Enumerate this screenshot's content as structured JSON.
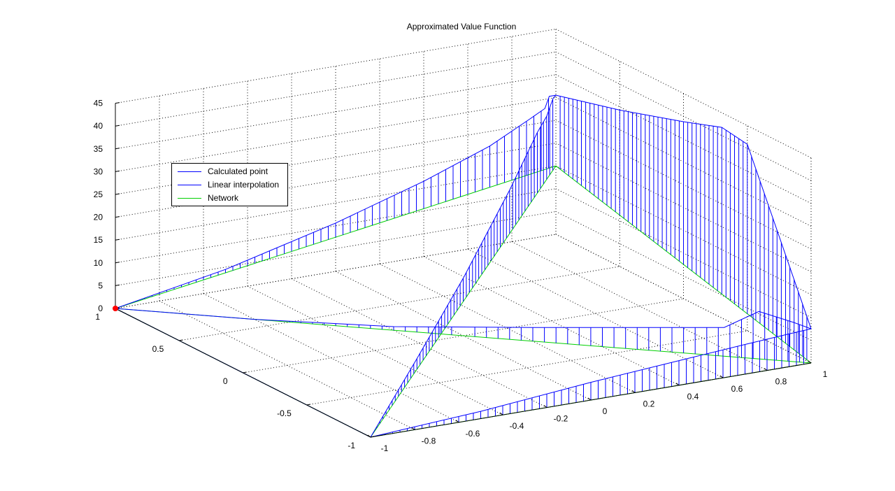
{
  "chart_data": {
    "type": "3d-line",
    "title": "Approximated Value Function",
    "xlabel": "",
    "ylabel": "",
    "zlabel": "",
    "xlim": [
      -1,
      1
    ],
    "ylim": [
      -1,
      1
    ],
    "zlim": [
      0,
      45
    ],
    "x_ticks": [
      "-1",
      "-0.8",
      "-0.6",
      "-0.4",
      "-0.2",
      "0",
      "0.2",
      "0.4",
      "0.6",
      "0.8",
      "1"
    ],
    "y_ticks": [
      "-1",
      "-0.5",
      "0",
      "0.5",
      "1"
    ],
    "z_ticks": [
      "0",
      "5",
      "10",
      "15",
      "20",
      "25",
      "30",
      "35",
      "40",
      "45"
    ],
    "grid": true,
    "legend_position": "upper-left",
    "legend": [
      {
        "label": "Calculated point",
        "color": "#0000ff"
      },
      {
        "label": "Linear interpolation",
        "color": "#0000ff"
      },
      {
        "label": "Network",
        "color": "#00d000"
      }
    ],
    "calculated_point": {
      "x": -1,
      "y": 1,
      "z": 0,
      "color": "#ff0000"
    },
    "colors": {
      "interpolation": "#0000ff",
      "network": "#00d000",
      "point": "#ff0000",
      "grid": "#000000"
    },
    "network_paths": [
      [
        [
          -1,
          1,
          0
        ],
        [
          1,
          1,
          15
        ]
      ],
      [
        [
          -1,
          1,
          0
        ],
        [
          1,
          -1,
          0
        ]
      ],
      [
        [
          1,
          1,
          15
        ],
        [
          1,
          -1,
          0
        ]
      ],
      [
        [
          1,
          -1,
          0
        ],
        [
          -1,
          -1,
          0
        ]
      ],
      [
        [
          -1,
          -1,
          0
        ],
        [
          -1,
          1,
          0
        ]
      ],
      [
        [
          -1,
          -1,
          0
        ],
        [
          1,
          1,
          15
        ]
      ]
    ],
    "interpolation_paths": [
      [
        [
          -1,
          1,
          0
        ],
        [
          -0.5,
          1,
          4.5
        ],
        [
          0,
          1,
          10.6
        ],
        [
          0.4,
          1,
          16.5
        ],
        [
          0.7,
          1,
          21.8
        ],
        [
          0.88,
          1,
          26.2
        ],
        [
          0.95,
          1,
          28
        ],
        [
          0.97,
          1,
          30.5
        ],
        [
          1,
          1,
          30.5
        ]
      ],
      [
        [
          1,
          1,
          30.5
        ],
        [
          1,
          0.5,
          34.3
        ],
        [
          1,
          0,
          38.8
        ],
        [
          1,
          -0.3,
          41.8
        ],
        [
          1,
          -0.5,
          40.9
        ],
        [
          1,
          -1,
          7.5
        ]
      ],
      [
        [
          -1,
          1,
          0
        ],
        [
          -0.6,
          0.6,
          0
        ],
        [
          -0.2,
          0.2,
          0.8
        ],
        [
          0.2,
          -0.2,
          3
        ],
        [
          0.6,
          -0.6,
          5.4
        ],
        [
          0.75,
          -0.75,
          6.3
        ],
        [
          0.85,
          -0.85,
          10.4
        ],
        [
          0.95,
          -0.95,
          8.6
        ],
        [
          1,
          -1,
          7.5
        ]
      ],
      [
        [
          -1,
          -1,
          0
        ],
        [
          -0.5,
          -0.5,
          6.1
        ],
        [
          0,
          0,
          12.6
        ],
        [
          0.5,
          0.5,
          20.8
        ],
        [
          0.8,
          0.8,
          26.8
        ],
        [
          0.9,
          0.9,
          28.1
        ],
        [
          0.97,
          0.97,
          30.5
        ],
        [
          1,
          1,
          30.5
        ]
      ],
      [
        [
          -1,
          -1,
          0
        ],
        [
          -0.5,
          -1,
          1.6
        ],
        [
          0,
          -1,
          3.9
        ],
        [
          0.4,
          -1,
          5.4
        ],
        [
          0.7,
          -1,
          6.5
        ],
        [
          0.9,
          -1,
          7.2
        ],
        [
          1,
          -1,
          7.5
        ]
      ],
      [
        [
          -1,
          -1,
          0
        ],
        [
          -1,
          0,
          0
        ],
        [
          -1,
          1,
          0
        ]
      ]
    ]
  }
}
